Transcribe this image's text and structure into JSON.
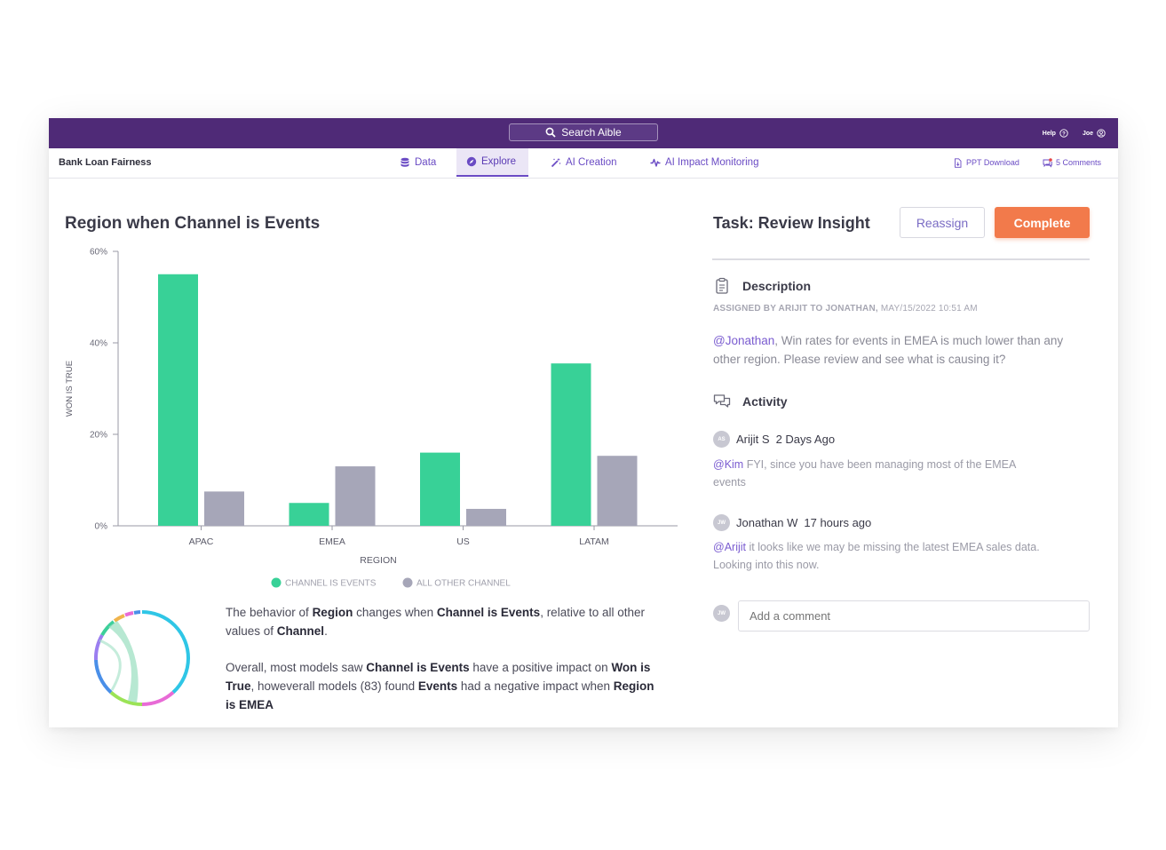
{
  "topbar": {
    "search_label": "Search Aible",
    "help_label": "Help",
    "user_label": "Joe"
  },
  "nav": {
    "project_name": "Bank Loan Fairness",
    "tabs": [
      {
        "label": "Data",
        "icon": "database-icon"
      },
      {
        "label": "Explore",
        "icon": "compass-icon",
        "active": true
      },
      {
        "label": "AI Creation",
        "icon": "magic-wand-icon"
      },
      {
        "label": "AI Impact Monitoring",
        "icon": "pulse-icon"
      }
    ],
    "ppt_label": "PPT Download",
    "comments_label": "5 Comments"
  },
  "chart_title": "Region when Channel is Events",
  "chart_data": {
    "type": "bar",
    "categories": [
      "APAC",
      "EMEA",
      "US",
      "LATAM"
    ],
    "series": [
      {
        "name": "CHANNEL IS EVENTS",
        "values": [
          55,
          5,
          16,
          35.5
        ],
        "color": "#38d197"
      },
      {
        "name": "ALL OTHER CHANNEL",
        "values": [
          7.5,
          13,
          3.7,
          15.3
        ],
        "color": "#a6a6b8"
      }
    ],
    "xlabel": "REGION",
    "ylabel": "WON IS TRUE",
    "yticks": [
      "0%",
      "20%",
      "40%",
      "60%"
    ],
    "ylim": [
      0,
      60
    ],
    "legend_position": "bottom"
  },
  "explanation": {
    "p1": [
      {
        "t": "The behavior of ",
        "b": false
      },
      {
        "t": "Region",
        "b": true
      },
      {
        "t": " changes when ",
        "b": false
      },
      {
        "t": "Channel is Events",
        "b": true
      },
      {
        "t": ", relative to all other values of ",
        "b": false
      },
      {
        "t": "Channel",
        "b": true
      },
      {
        "t": ".",
        "b": false
      }
    ],
    "p2": [
      {
        "t": "Overall, most models saw ",
        "b": false
      },
      {
        "t": "Channel is Events",
        "b": true
      },
      {
        "t": " have a positive impact on ",
        "b": false
      },
      {
        "t": "Won is True",
        "b": true
      },
      {
        "t": ", howeverall models (83) found ",
        "b": false
      },
      {
        "t": "Events",
        "b": true
      },
      {
        "t": " had a negative impact when ",
        "b": false
      },
      {
        "t": "Region is EMEA",
        "b": true
      }
    ]
  },
  "task": {
    "title": "Task: Review Insight",
    "reassign_label": "Reassign",
    "complete_label": "Complete"
  },
  "description": {
    "heading": "Description",
    "assigned_by": "ASSIGNED BY ARIJIT TO JONATHAN,",
    "assigned_when": "MAY/15/2022 10:51 AM",
    "mention": "@Jonathan",
    "text": ", Win rates for events in EMEA is much lower than any other region. Please review and see what is causing it?"
  },
  "activity": {
    "heading": "Activity",
    "items": [
      {
        "initials": "AS",
        "author": "Arijit S",
        "time": "2 Days Ago",
        "mention": "@Kim",
        "text": " FYI, since you have been managing most of the EMEA events"
      },
      {
        "initials": "JW",
        "author": "Jonathan W",
        "time": "17 hours ago",
        "mention": "@Arijit",
        "text": " it looks like we may be missing the latest EMEA sales data. Looking into this now."
      }
    ]
  },
  "comment": {
    "initials": "JW",
    "placeholder": "Add a comment"
  },
  "colors": {
    "brand": "#4f2a77",
    "accent": "#6a4bc4",
    "complete": "#f27a4b",
    "green": "#38d197",
    "gray": "#a6a6b8"
  }
}
